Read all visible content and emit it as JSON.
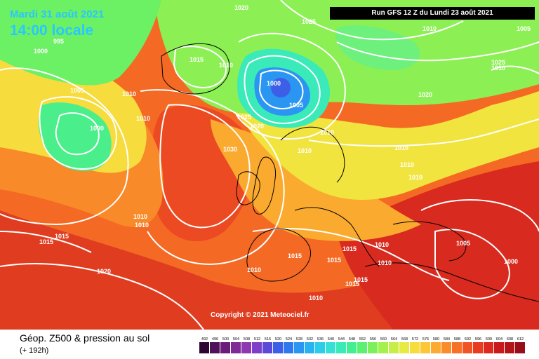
{
  "header": {
    "date": "Mardi 31 août 2021",
    "time": "14:00 locale",
    "run": "Run GFS 12 Z du Lundi 23 août 2021"
  },
  "copyright": "Copyright © 2021 Meteociel.fr",
  "legend": {
    "title": "Géop. Z500 & pression au sol",
    "subtitle": "(+ 192h)",
    "ticks": [
      "492",
      "496",
      "500",
      "504",
      "508",
      "512",
      "516",
      "520",
      "524",
      "528",
      "532",
      "536",
      "540",
      "544",
      "548",
      "552",
      "556",
      "560",
      "564",
      "568",
      "572",
      "576",
      "580",
      "584",
      "588",
      "592",
      "596",
      "600",
      "604",
      "608",
      "612"
    ],
    "colors": [
      "#2c0530",
      "#50105a",
      "#6a1d7a",
      "#7f2a95",
      "#8e37b0",
      "#7d3fc8",
      "#5b49d8",
      "#3d5ee6",
      "#2f78f0",
      "#2a96f2",
      "#28b2f0",
      "#2ccde8",
      "#35e0d6",
      "#3aeab8",
      "#42ee92",
      "#5af070",
      "#7cf05a",
      "#a4f04c",
      "#c8ee46",
      "#e6ea42",
      "#f6dc3c",
      "#fcc636",
      "#fcaa30",
      "#fa8c2a",
      "#f67026",
      "#f05422",
      "#e83c20",
      "#dc281e",
      "#c81a1c",
      "#b2141a",
      "#980e18"
    ]
  },
  "pressure_labels": [
    {
      "text": "995"
    },
    {
      "text": "1000"
    },
    {
      "text": "1020"
    },
    {
      "text": "1025"
    },
    {
      "text": "1010"
    },
    {
      "text": "1005"
    },
    {
      "text": "1010"
    },
    {
      "text": "1005"
    },
    {
      "text": "1000"
    },
    {
      "text": "1010"
    },
    {
      "text": "1015"
    },
    {
      "text": "1010"
    },
    {
      "text": "1000"
    },
    {
      "text": "1005"
    },
    {
      "text": "1025"
    },
    {
      "text": "1020"
    },
    {
      "text": "1010"
    },
    {
      "text": "1010"
    },
    {
      "text": "1020"
    },
    {
      "text": "1010"
    },
    {
      "text": "1030"
    },
    {
      "text": "1010"
    },
    {
      "text": "1010"
    },
    {
      "text": "1010"
    },
    {
      "text": "1010"
    },
    {
      "text": "1015"
    },
    {
      "text": "1015"
    },
    {
      "text": "1010"
    },
    {
      "text": "1015"
    },
    {
      "text": "1010"
    },
    {
      "text": "1015"
    },
    {
      "text": "1005"
    },
    {
      "text": "1000"
    },
    {
      "text": "1020"
    },
    {
      "text": "1010"
    },
    {
      "text": "1015"
    },
    {
      "text": "1015"
    },
    {
      "text": "1015"
    },
    {
      "text": "1010"
    },
    {
      "text": "1010"
    },
    {
      "text": "1025"
    }
  ]
}
